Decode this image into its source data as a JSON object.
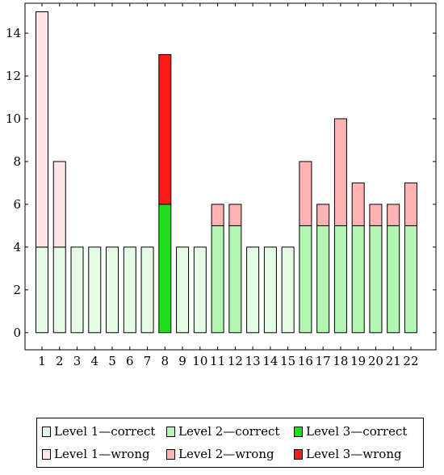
{
  "chart_data": {
    "type": "bar",
    "stacked": true,
    "categories": [
      "1",
      "2",
      "3",
      "4",
      "5",
      "6",
      "7",
      "8",
      "9",
      "10",
      "11",
      "12",
      "13",
      "14",
      "15",
      "16",
      "17",
      "18",
      "19",
      "20",
      "21",
      "22"
    ],
    "level": [
      1,
      1,
      1,
      1,
      1,
      1,
      1,
      3,
      1,
      1,
      2,
      2,
      1,
      1,
      1,
      2,
      2,
      2,
      2,
      2,
      2,
      2
    ],
    "correct": [
      4,
      4,
      4,
      4,
      4,
      4,
      4,
      6,
      4,
      4,
      5,
      5,
      4,
      4,
      4,
      5,
      5,
      5,
      5,
      5,
      5,
      5
    ],
    "wrong": [
      11,
      4,
      0,
      0,
      0,
      0,
      0,
      7,
      0,
      0,
      1,
      1,
      0,
      0,
      0,
      3,
      1,
      5,
      2,
      1,
      1,
      2
    ],
    "ylim": [
      -0.8,
      15.4
    ],
    "yticks": [
      0,
      2,
      4,
      6,
      8,
      10,
      12,
      14
    ],
    "grid": false,
    "legend_position": "bottom",
    "colors": {
      "l1_correct": "#e6fbe6",
      "l2_correct": "#b3f5b3",
      "l3_correct": "#19e019",
      "l1_wrong": "#ffe6e6",
      "l2_wrong": "#ffb3b3",
      "l3_wrong": "#ff1a1a"
    }
  },
  "legend": {
    "items": [
      {
        "label": "Level 1—correct",
        "color": "#e6fbe6"
      },
      {
        "label": "Level 2—correct",
        "color": "#b3f5b3"
      },
      {
        "label": "Level 3—correct",
        "color": "#19e019"
      },
      {
        "label": "Level 1—wrong",
        "color": "#ffe6e6"
      },
      {
        "label": "Level 2—wrong",
        "color": "#ffb3b3"
      },
      {
        "label": "Level 3—wrong",
        "color": "#ff1a1a"
      }
    ]
  }
}
